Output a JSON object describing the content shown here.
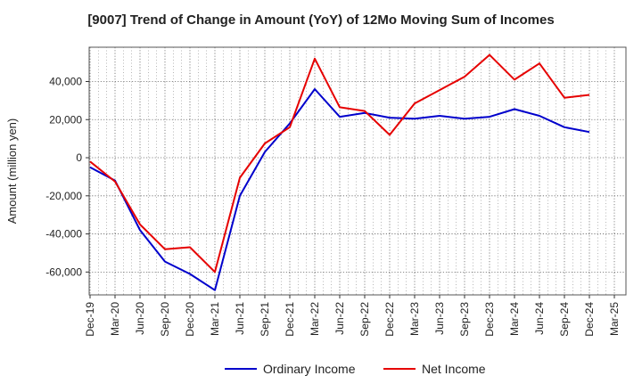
{
  "chart_data": {
    "type": "line",
    "title": "[9007]  Trend of Change in Amount (YoY) of 12Mo Moving Sum of Incomes",
    "xlabel": "",
    "ylabel": "Amount (million yen)",
    "categories": [
      "Dec-19",
      "Mar-20",
      "Jun-20",
      "Sep-20",
      "Dec-20",
      "Mar-21",
      "Jun-21",
      "Sep-21",
      "Dec-21",
      "Mar-22",
      "Jun-22",
      "Sep-22",
      "Dec-22",
      "Mar-23",
      "Jun-23",
      "Sep-23",
      "Dec-23",
      "Mar-24",
      "Jun-24",
      "Sep-24",
      "Dec-24",
      "Mar-25"
    ],
    "ylim": [
      -72000,
      58000
    ],
    "yticks": [
      -60000,
      -40000,
      -20000,
      0,
      20000,
      40000
    ],
    "ytick_labels": [
      "-60,000",
      "-40,000",
      "-20,000",
      "0",
      "20,000",
      "40,000"
    ],
    "grid": true,
    "legend_position": "bottom",
    "series": [
      {
        "name": "Ordinary Income",
        "color": "#0000cc",
        "values": [
          -5000,
          -12000,
          -38000,
          -54500,
          -61000,
          -69500,
          -20000,
          3000,
          18000,
          36000,
          21500,
          23500,
          21000,
          20500,
          22000,
          20500,
          21500,
          25500,
          22000,
          16000,
          13500,
          null
        ]
      },
      {
        "name": "Net Income",
        "color": "#e60000",
        "values": [
          -2000,
          -12500,
          -35000,
          -48000,
          -47000,
          -60000,
          -10500,
          7500,
          16000,
          52000,
          26500,
          24500,
          12000,
          28500,
          35500,
          42500,
          54000,
          41000,
          49500,
          31500,
          33000,
          null
        ]
      }
    ]
  }
}
